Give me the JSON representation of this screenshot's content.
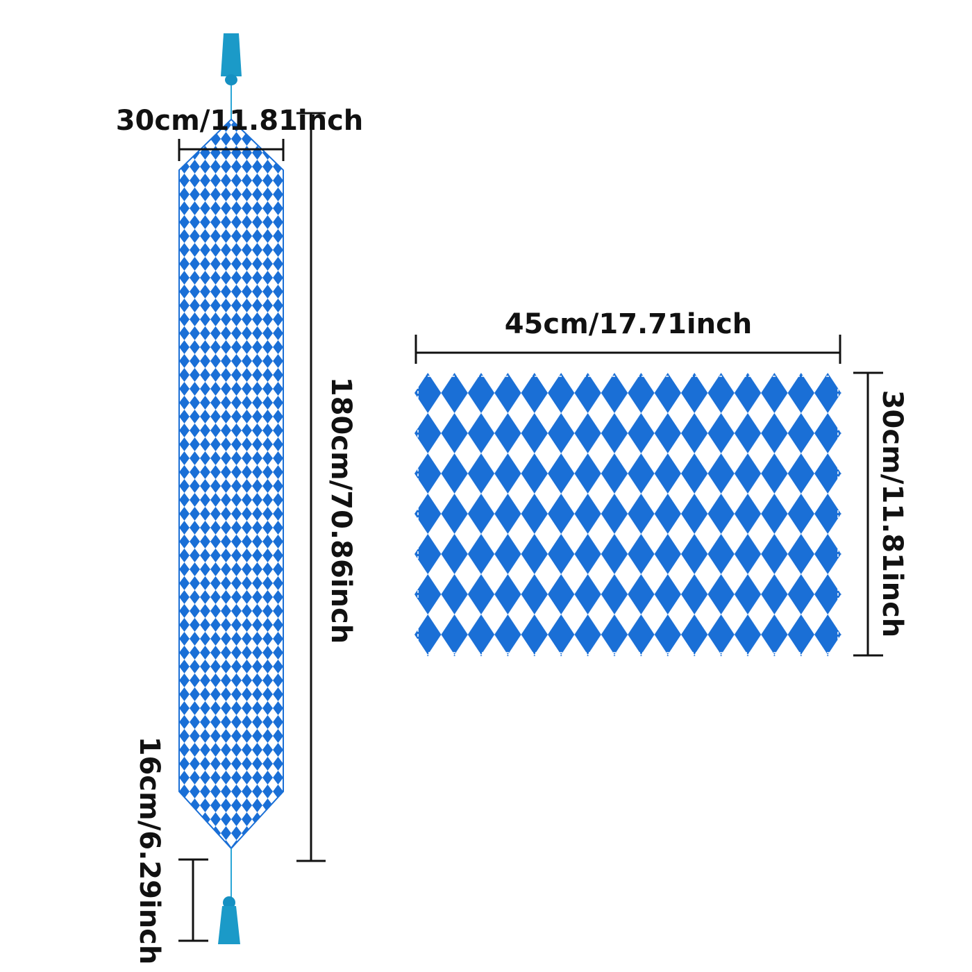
{
  "runner": {
    "width_label": "30cm/11.81inch",
    "length_label": "180cm/70.86inch",
    "tassel_label": "16cm/6.29inch"
  },
  "placemat": {
    "width_label": "45cm/17.71inch",
    "height_label": "30cm/11.81inch"
  }
}
